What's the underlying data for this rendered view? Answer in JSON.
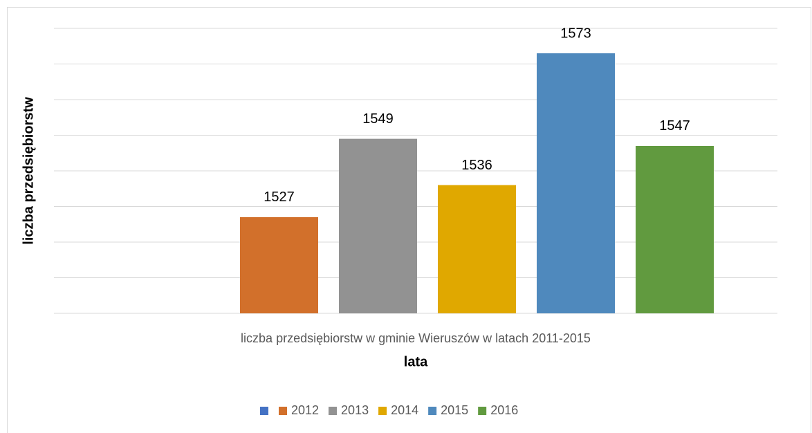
{
  "chart_data": {
    "type": "bar",
    "x_label": "lata",
    "y_label": "liczba przedsiębiorstw",
    "categories": [
      "liczba przedsiębiorstw w gminie Wieruszów w latach 2011-2015"
    ],
    "series": [
      {
        "name": null,
        "color": "#4472c4",
        "values": [
          null
        ]
      },
      {
        "name": "2012",
        "color": "#d2702b",
        "values": [
          1527
        ]
      },
      {
        "name": "2013",
        "color": "#929292",
        "values": [
          1549
        ]
      },
      {
        "name": "2014",
        "color": "#e0a800",
        "values": [
          1536
        ]
      },
      {
        "name": "2015",
        "color": "#4f89bd",
        "values": [
          1573
        ]
      },
      {
        "name": "2016",
        "color": "#619a3f",
        "values": [
          1547
        ]
      }
    ],
    "ylim": [
      1500,
      1580
    ],
    "yticks": [
      1500,
      1510,
      1520,
      1530,
      1540,
      1550,
      1560,
      1570,
      1580
    ],
    "grid": true,
    "legend": "bottom"
  }
}
